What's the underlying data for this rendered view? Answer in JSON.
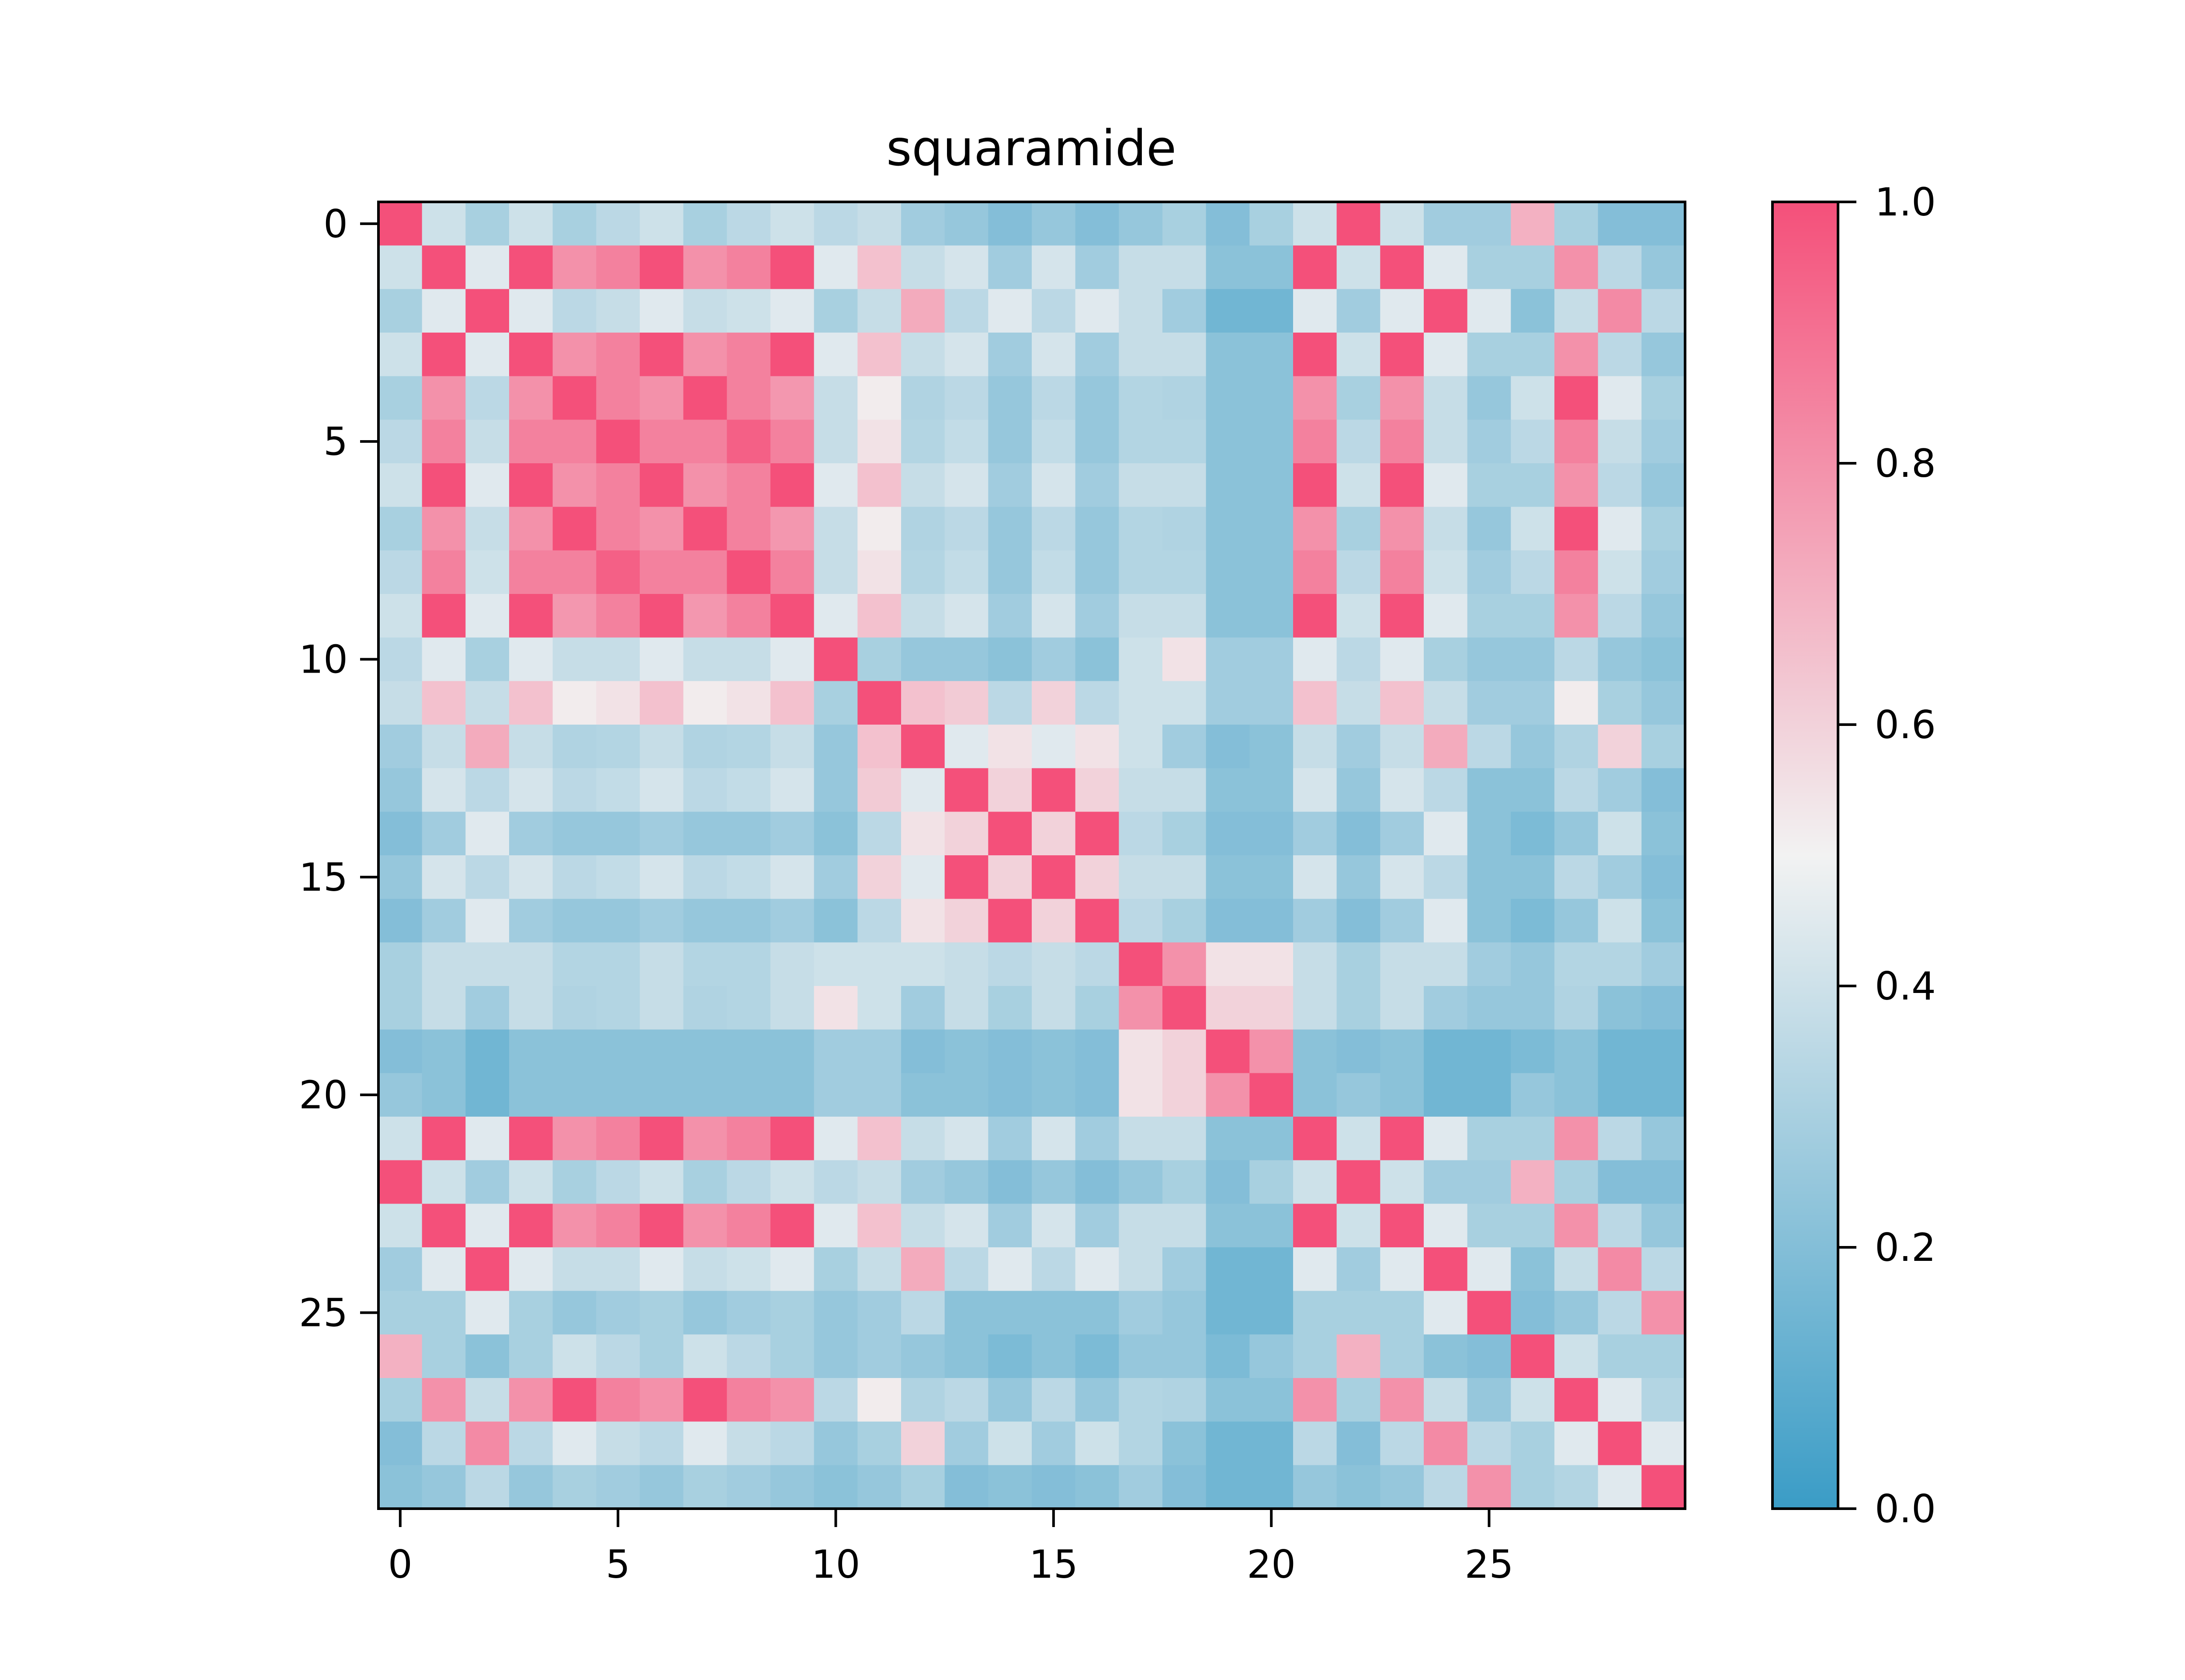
{
  "chart_data": {
    "type": "heatmap",
    "title": "squaramide",
    "xlabel": "",
    "ylabel": "",
    "x_ticks": [
      0,
      5,
      10,
      15,
      20,
      25
    ],
    "y_ticks": [
      0,
      5,
      10,
      15,
      20,
      25
    ],
    "x_tick_labels": [
      "0",
      "5",
      "10",
      "15",
      "20",
      "25"
    ],
    "y_tick_labels": [
      "0",
      "5",
      "10",
      "15",
      "20",
      "25"
    ],
    "xlim": [
      -0.5,
      29.5
    ],
    "ylim": [
      29.5,
      -0.5
    ],
    "grid": false,
    "colorbar": {
      "range": [
        0.0,
        1.0
      ],
      "ticks": [
        0.0,
        0.2,
        0.4,
        0.6,
        0.8,
        1.0
      ],
      "tick_labels": [
        "0.0",
        "0.2",
        "0.4",
        "0.6",
        "0.8",
        "1.0"
      ],
      "colors": [
        "#3a9cc6",
        "#f2f2f2",
        "#f4507a"
      ]
    },
    "matrix": [
      [
        1.0,
        0.4,
        0.3,
        0.4,
        0.3,
        0.35,
        0.4,
        0.3,
        0.35,
        0.4,
        0.35,
        0.38,
        0.28,
        0.25,
        0.2,
        0.25,
        0.2,
        0.25,
        0.3,
        0.2,
        0.3,
        0.4,
        1.0,
        0.4,
        0.28,
        0.28,
        0.7,
        0.3,
        0.2,
        0.2
      ],
      [
        0.4,
        1.0,
        0.45,
        1.0,
        0.8,
        0.85,
        1.0,
        0.8,
        0.85,
        1.0,
        0.45,
        0.65,
        0.38,
        0.42,
        0.28,
        0.42,
        0.28,
        0.38,
        0.38,
        0.22,
        0.22,
        1.0,
        0.4,
        1.0,
        0.45,
        0.3,
        0.3,
        0.8,
        0.35,
        0.25
      ],
      [
        0.3,
        0.45,
        1.0,
        0.45,
        0.35,
        0.38,
        0.45,
        0.38,
        0.4,
        0.45,
        0.3,
        0.38,
        0.72,
        0.35,
        0.45,
        0.35,
        0.45,
        0.38,
        0.28,
        0.15,
        0.15,
        0.45,
        0.28,
        0.45,
        1.0,
        0.45,
        0.22,
        0.38,
        0.82,
        0.35
      ],
      [
        0.4,
        1.0,
        0.45,
        1.0,
        0.8,
        0.85,
        1.0,
        0.8,
        0.85,
        1.0,
        0.45,
        0.65,
        0.38,
        0.42,
        0.28,
        0.42,
        0.28,
        0.38,
        0.38,
        0.22,
        0.22,
        1.0,
        0.4,
        1.0,
        0.45,
        0.3,
        0.3,
        0.8,
        0.35,
        0.25
      ],
      [
        0.3,
        0.8,
        0.35,
        0.8,
        1.0,
        0.85,
        0.8,
        1.0,
        0.85,
        0.78,
        0.38,
        0.52,
        0.32,
        0.35,
        0.25,
        0.35,
        0.25,
        0.33,
        0.32,
        0.22,
        0.22,
        0.8,
        0.3,
        0.8,
        0.38,
        0.25,
        0.4,
        1.0,
        0.45,
        0.3
      ],
      [
        0.35,
        0.85,
        0.38,
        0.85,
        0.85,
        1.0,
        0.85,
        0.85,
        0.95,
        0.85,
        0.38,
        0.55,
        0.33,
        0.37,
        0.25,
        0.37,
        0.25,
        0.33,
        0.33,
        0.22,
        0.22,
        0.85,
        0.35,
        0.85,
        0.38,
        0.28,
        0.35,
        0.85,
        0.38,
        0.28
      ],
      [
        0.4,
        1.0,
        0.45,
        1.0,
        0.8,
        0.85,
        1.0,
        0.8,
        0.85,
        1.0,
        0.45,
        0.65,
        0.38,
        0.42,
        0.28,
        0.42,
        0.28,
        0.38,
        0.38,
        0.22,
        0.22,
        1.0,
        0.4,
        1.0,
        0.45,
        0.3,
        0.3,
        0.8,
        0.35,
        0.25
      ],
      [
        0.3,
        0.8,
        0.38,
        0.8,
        1.0,
        0.85,
        0.8,
        1.0,
        0.85,
        0.78,
        0.38,
        0.52,
        0.32,
        0.35,
        0.25,
        0.35,
        0.25,
        0.33,
        0.32,
        0.22,
        0.22,
        0.8,
        0.3,
        0.8,
        0.38,
        0.25,
        0.4,
        1.0,
        0.45,
        0.3
      ],
      [
        0.35,
        0.85,
        0.4,
        0.85,
        0.85,
        0.95,
        0.85,
        0.85,
        1.0,
        0.85,
        0.38,
        0.55,
        0.33,
        0.37,
        0.25,
        0.37,
        0.25,
        0.33,
        0.33,
        0.22,
        0.22,
        0.85,
        0.35,
        0.85,
        0.4,
        0.28,
        0.35,
        0.85,
        0.4,
        0.28
      ],
      [
        0.4,
        1.0,
        0.45,
        1.0,
        0.78,
        0.85,
        1.0,
        0.78,
        0.85,
        1.0,
        0.45,
        0.65,
        0.38,
        0.42,
        0.28,
        0.42,
        0.28,
        0.38,
        0.38,
        0.22,
        0.22,
        1.0,
        0.4,
        1.0,
        0.45,
        0.3,
        0.3,
        0.8,
        0.35,
        0.25
      ],
      [
        0.35,
        0.45,
        0.3,
        0.45,
        0.38,
        0.38,
        0.45,
        0.38,
        0.38,
        0.45,
        1.0,
        0.3,
        0.25,
        0.25,
        0.22,
        0.28,
        0.22,
        0.4,
        0.55,
        0.28,
        0.28,
        0.45,
        0.35,
        0.45,
        0.3,
        0.25,
        0.25,
        0.35,
        0.25,
        0.22
      ],
      [
        0.38,
        0.65,
        0.38,
        0.65,
        0.52,
        0.55,
        0.65,
        0.52,
        0.55,
        0.65,
        0.3,
        1.0,
        0.65,
        0.62,
        0.35,
        0.6,
        0.35,
        0.4,
        0.4,
        0.28,
        0.28,
        0.65,
        0.38,
        0.65,
        0.38,
        0.28,
        0.28,
        0.52,
        0.3,
        0.25
      ],
      [
        0.28,
        0.38,
        0.72,
        0.38,
        0.32,
        0.33,
        0.38,
        0.32,
        0.33,
        0.38,
        0.25,
        0.65,
        1.0,
        0.45,
        0.55,
        0.45,
        0.55,
        0.4,
        0.28,
        0.2,
        0.22,
        0.38,
        0.28,
        0.38,
        0.72,
        0.35,
        0.25,
        0.32,
        0.6,
        0.3
      ],
      [
        0.25,
        0.42,
        0.35,
        0.42,
        0.35,
        0.37,
        0.42,
        0.35,
        0.37,
        0.42,
        0.25,
        0.62,
        0.45,
        1.0,
        0.6,
        1.0,
        0.6,
        0.38,
        0.38,
        0.22,
        0.22,
        0.42,
        0.25,
        0.42,
        0.35,
        0.22,
        0.22,
        0.35,
        0.28,
        0.2
      ],
      [
        0.2,
        0.28,
        0.45,
        0.28,
        0.25,
        0.25,
        0.28,
        0.25,
        0.25,
        0.28,
        0.22,
        0.35,
        0.55,
        0.6,
        1.0,
        0.6,
        1.0,
        0.35,
        0.3,
        0.2,
        0.2,
        0.28,
        0.2,
        0.28,
        0.45,
        0.22,
        0.18,
        0.25,
        0.4,
        0.22
      ],
      [
        0.25,
        0.42,
        0.35,
        0.42,
        0.35,
        0.37,
        0.42,
        0.35,
        0.37,
        0.42,
        0.28,
        0.6,
        0.45,
        1.0,
        0.6,
        1.0,
        0.6,
        0.38,
        0.38,
        0.22,
        0.22,
        0.42,
        0.25,
        0.42,
        0.35,
        0.22,
        0.22,
        0.35,
        0.28,
        0.2
      ],
      [
        0.2,
        0.28,
        0.45,
        0.28,
        0.25,
        0.25,
        0.28,
        0.25,
        0.25,
        0.28,
        0.22,
        0.35,
        0.55,
        0.6,
        1.0,
        0.6,
        1.0,
        0.35,
        0.3,
        0.2,
        0.2,
        0.28,
        0.2,
        0.28,
        0.45,
        0.22,
        0.18,
        0.25,
        0.4,
        0.22
      ],
      [
        0.3,
        0.38,
        0.38,
        0.38,
        0.33,
        0.33,
        0.38,
        0.33,
        0.33,
        0.38,
        0.4,
        0.4,
        0.4,
        0.38,
        0.35,
        0.38,
        0.35,
        1.0,
        0.8,
        0.55,
        0.55,
        0.38,
        0.3,
        0.38,
        0.38,
        0.28,
        0.25,
        0.33,
        0.33,
        0.28
      ],
      [
        0.3,
        0.38,
        0.28,
        0.38,
        0.32,
        0.33,
        0.38,
        0.32,
        0.33,
        0.38,
        0.55,
        0.4,
        0.28,
        0.38,
        0.3,
        0.38,
        0.3,
        0.8,
        1.0,
        0.6,
        0.6,
        0.38,
        0.3,
        0.38,
        0.28,
        0.25,
        0.25,
        0.32,
        0.22,
        0.2
      ],
      [
        0.2,
        0.22,
        0.15,
        0.22,
        0.22,
        0.22,
        0.22,
        0.22,
        0.22,
        0.22,
        0.28,
        0.28,
        0.2,
        0.22,
        0.2,
        0.22,
        0.2,
        0.55,
        0.6,
        1.0,
        0.8,
        0.22,
        0.2,
        0.22,
        0.15,
        0.15,
        0.18,
        0.22,
        0.15,
        0.15
      ],
      [
        0.25,
        0.22,
        0.15,
        0.22,
        0.22,
        0.22,
        0.22,
        0.22,
        0.22,
        0.22,
        0.28,
        0.28,
        0.22,
        0.22,
        0.2,
        0.22,
        0.2,
        0.55,
        0.6,
        0.8,
        1.0,
        0.22,
        0.25,
        0.22,
        0.15,
        0.15,
        0.25,
        0.22,
        0.15,
        0.15
      ],
      [
        0.4,
        1.0,
        0.45,
        1.0,
        0.8,
        0.85,
        1.0,
        0.8,
        0.85,
        1.0,
        0.45,
        0.65,
        0.38,
        0.42,
        0.28,
        0.42,
        0.28,
        0.38,
        0.38,
        0.22,
        0.22,
        1.0,
        0.4,
        1.0,
        0.45,
        0.3,
        0.3,
        0.8,
        0.35,
        0.25
      ],
      [
        1.0,
        0.4,
        0.28,
        0.4,
        0.3,
        0.35,
        0.4,
        0.3,
        0.35,
        0.4,
        0.35,
        0.38,
        0.28,
        0.25,
        0.2,
        0.25,
        0.2,
        0.25,
        0.3,
        0.2,
        0.3,
        0.4,
        1.0,
        0.4,
        0.28,
        0.28,
        0.7,
        0.3,
        0.2,
        0.2
      ],
      [
        0.4,
        1.0,
        0.45,
        1.0,
        0.8,
        0.85,
        1.0,
        0.8,
        0.85,
        1.0,
        0.45,
        0.65,
        0.38,
        0.42,
        0.28,
        0.42,
        0.28,
        0.38,
        0.38,
        0.22,
        0.22,
        1.0,
        0.4,
        1.0,
        0.45,
        0.3,
        0.3,
        0.8,
        0.35,
        0.25
      ],
      [
        0.28,
        0.45,
        1.0,
        0.45,
        0.38,
        0.38,
        0.45,
        0.38,
        0.4,
        0.45,
        0.3,
        0.38,
        0.72,
        0.35,
        0.45,
        0.35,
        0.45,
        0.38,
        0.28,
        0.15,
        0.15,
        0.45,
        0.28,
        0.45,
        1.0,
        0.45,
        0.22,
        0.38,
        0.82,
        0.35
      ],
      [
        0.3,
        0.3,
        0.45,
        0.3,
        0.25,
        0.28,
        0.3,
        0.25,
        0.28,
        0.3,
        0.25,
        0.28,
        0.35,
        0.22,
        0.22,
        0.22,
        0.22,
        0.28,
        0.25,
        0.15,
        0.15,
        0.3,
        0.3,
        0.3,
        0.45,
        1.0,
        0.2,
        0.25,
        0.35,
        0.8
      ],
      [
        0.7,
        0.3,
        0.22,
        0.3,
        0.4,
        0.35,
        0.3,
        0.4,
        0.35,
        0.3,
        0.25,
        0.28,
        0.25,
        0.22,
        0.18,
        0.22,
        0.18,
        0.25,
        0.25,
        0.18,
        0.25,
        0.3,
        0.7,
        0.3,
        0.22,
        0.2,
        1.0,
        0.4,
        0.3,
        0.3
      ],
      [
        0.3,
        0.8,
        0.38,
        0.8,
        1.0,
        0.85,
        0.8,
        1.0,
        0.85,
        0.8,
        0.35,
        0.52,
        0.32,
        0.35,
        0.25,
        0.35,
        0.25,
        0.33,
        0.32,
        0.22,
        0.22,
        0.8,
        0.3,
        0.8,
        0.38,
        0.25,
        0.4,
        1.0,
        0.45,
        0.33
      ],
      [
        0.2,
        0.35,
        0.82,
        0.35,
        0.45,
        0.38,
        0.35,
        0.45,
        0.38,
        0.35,
        0.25,
        0.3,
        0.6,
        0.28,
        0.4,
        0.28,
        0.4,
        0.33,
        0.22,
        0.15,
        0.15,
        0.35,
        0.2,
        0.35,
        0.82,
        0.35,
        0.3,
        0.45,
        1.0,
        0.45
      ],
      [
        0.22,
        0.25,
        0.35,
        0.25,
        0.3,
        0.28,
        0.25,
        0.3,
        0.28,
        0.25,
        0.22,
        0.25,
        0.3,
        0.2,
        0.22,
        0.2,
        0.22,
        0.28,
        0.2,
        0.15,
        0.15,
        0.25,
        0.22,
        0.25,
        0.35,
        0.8,
        0.3,
        0.33,
        0.45,
        1.0
      ]
    ]
  }
}
